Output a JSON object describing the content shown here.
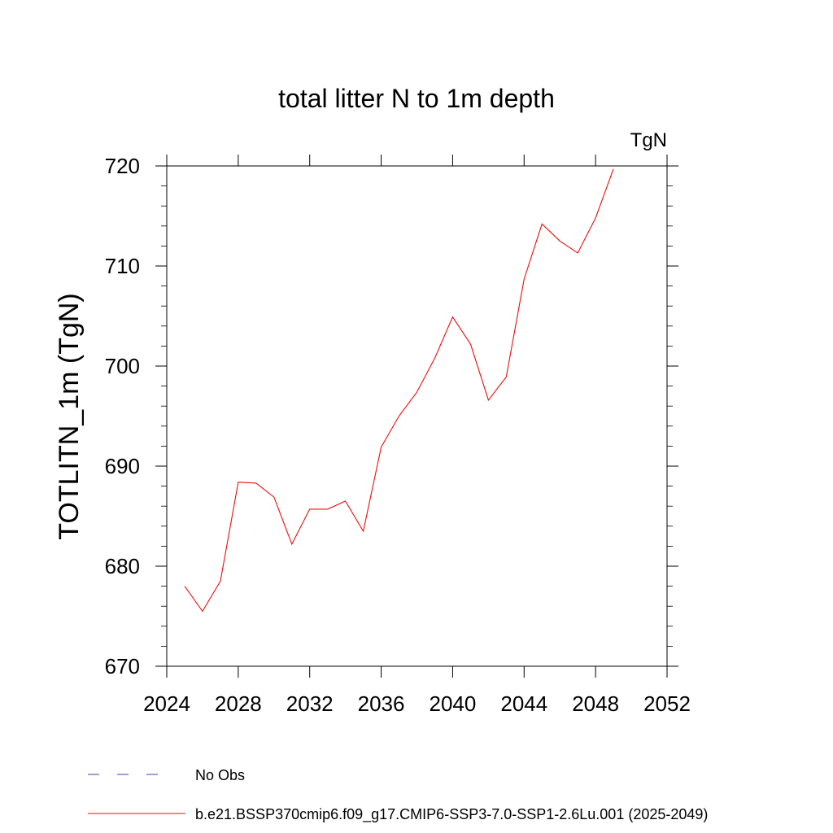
{
  "chart_data": {
    "type": "line",
    "title": "total litter N to 1m depth",
    "units_label": "TgN",
    "ylabel": "TOTLITN_1m  (TgN)",
    "xlabel": "",
    "xlim": [
      2024,
      2052
    ],
    "ylim": [
      670,
      720
    ],
    "x_ticks": [
      2024,
      2028,
      2032,
      2036,
      2040,
      2044,
      2048,
      2052
    ],
    "x_tick_labels": [
      "2024",
      "2028",
      "2032",
      "2036",
      "2040",
      "2044",
      "2048",
      "2052"
    ],
    "y_ticks": [
      670,
      680,
      690,
      700,
      710,
      720
    ],
    "y_tick_labels": [
      "670",
      "680",
      "690",
      "700",
      "710",
      "720"
    ],
    "grid": false,
    "legend_position": "bottom",
    "series": [
      {
        "name": "No Obs",
        "color": "#4a3ba8",
        "dash": "dashed",
        "x": [],
        "y": []
      },
      {
        "name": "b.e21.BSSP370cmip6.f09_g17.CMIP6-SSP3-7.0-SSP1-2.6Lu.001 (2025-2049)",
        "color": "#e8100e",
        "dash": "solid",
        "x": [
          2025,
          2026,
          2027,
          2028,
          2029,
          2030,
          2031,
          2032,
          2033,
          2034,
          2035,
          2036,
          2037,
          2038,
          2039,
          2040,
          2041,
          2042,
          2043,
          2044,
          2045,
          2046,
          2047,
          2048,
          2049
        ],
        "y": [
          678.0,
          675.5,
          678.5,
          688.4,
          688.3,
          686.9,
          682.2,
          685.7,
          685.7,
          686.5,
          683.5,
          691.9,
          695.0,
          697.4,
          700.8,
          704.9,
          702.2,
          696.6,
          698.9,
          708.7,
          714.2,
          712.5,
          711.3,
          714.8,
          719.7
        ]
      }
    ]
  }
}
